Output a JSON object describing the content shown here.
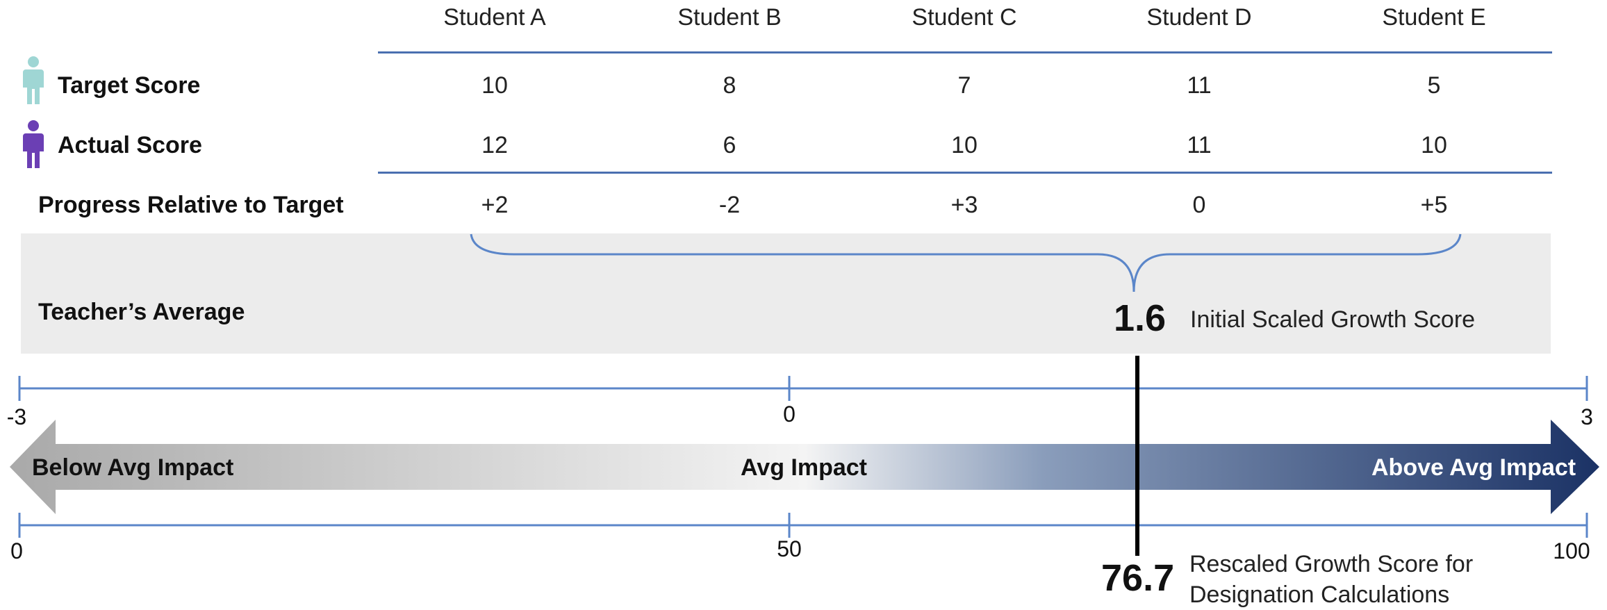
{
  "students": [
    "Student A",
    "Student B",
    "Student C",
    "Student D",
    "Student E"
  ],
  "rows": {
    "target": {
      "label": "Target Score",
      "values": [
        "10",
        "8",
        "7",
        "11",
        "5"
      ]
    },
    "actual": {
      "label": "Actual Score",
      "values": [
        "12",
        "6",
        "10",
        "11",
        "10"
      ]
    },
    "progress": {
      "label": "Progress Relative to Target",
      "values": [
        "+2",
        "-2",
        "+3",
        "0",
        "+5"
      ]
    }
  },
  "average": {
    "label": "Teacher’s Average",
    "value": "1.6",
    "caption": "Initial Scaled Growth Score"
  },
  "top_scale": {
    "min": "-3",
    "mid": "0",
    "max": "3"
  },
  "arrow": {
    "left_label": "Below Avg Impact",
    "center_label": "Avg Impact",
    "right_label": "Above Avg Impact",
    "colors": {
      "left": "#a9a9a9",
      "center": "#f4f4f4",
      "right": "#1b3265"
    }
  },
  "bottom_scale": {
    "min": "0",
    "mid": "50",
    "max": "100"
  },
  "rescaled": {
    "value": "76.7",
    "caption_line1": "Rescaled Growth Score for",
    "caption_line2": "Designation Calculations"
  },
  "icons": {
    "target": "person-icon",
    "actual": "person-icon"
  },
  "colors": {
    "rule": "#4a6fb0",
    "target_icon": "#9fd6d4",
    "actual_icon": "#6b3fb4",
    "band": "#ececec"
  }
}
